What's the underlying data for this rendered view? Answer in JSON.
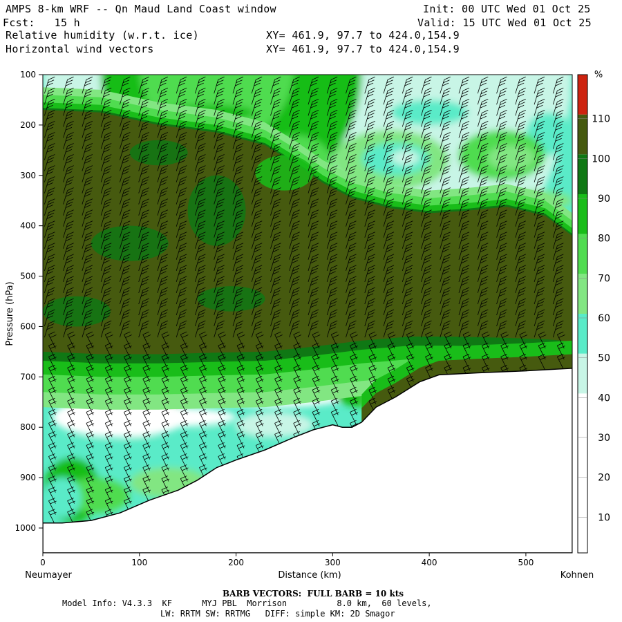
{
  "header": {
    "title": "AMPS 8-km WRF -- Qn Maud Land Coast window",
    "init": "Init: 00 UTC Wed 01 Oct 25",
    "fcst": "Fcst:   15 h",
    "valid": "Valid: 15 UTC Wed 01 Oct 25",
    "field1": "Relative humidity (w.r.t. ice)",
    "field2": "Horizontal wind vectors",
    "xy1": "XY= 461.9, 97.7 to 424.0,154.9",
    "xy2": "XY= 461.9, 97.7 to 424.0,154.9"
  },
  "footer": {
    "barb": "BARB VECTORS:  FULL BARB = 10 kts",
    "model1": "Model Info: V4.3.3  KF      MYJ PBL  Morrison          8.0 km,  60 levels,",
    "model2": "LW: RRTM SW: RRTMG   DIFF: simple KM: 2D Smagor"
  },
  "chart_data": {
    "type": "heatmap",
    "title": "Relative humidity (w.r.t. ice) cross-section",
    "xlabel": "Distance (km)",
    "ylabel": "Pressure (hPa)",
    "x_start_label": "Neumayer",
    "x_end_label": "Kohnen",
    "xlim": [
      0,
      548
    ],
    "ylim": [
      1050,
      100
    ],
    "xticks": [
      0,
      100,
      200,
      300,
      400,
      500
    ],
    "yticks": [
      100,
      200,
      300,
      400,
      500,
      600,
      700,
      800,
      900,
      1000
    ],
    "colorbar": {
      "unit": "%",
      "levels": [
        10,
        20,
        30,
        40,
        50,
        60,
        70,
        80,
        90,
        100,
        110
      ],
      "colors": [
        "#ffffff",
        "#ffffff",
        "#ffffff",
        "#c8f5e6",
        "#5aebc8",
        "#82e682",
        "#50dc50",
        "#19bd19",
        "#0f7814",
        "#465a0f",
        "#cd230f"
      ]
    },
    "terrain": [
      [
        0,
        990
      ],
      [
        20,
        990
      ],
      [
        50,
        985
      ],
      [
        80,
        970
      ],
      [
        110,
        945
      ],
      [
        140,
        925
      ],
      [
        160,
        905
      ],
      [
        180,
        880
      ],
      [
        200,
        865
      ],
      [
        230,
        845
      ],
      [
        260,
        820
      ],
      [
        280,
        805
      ],
      [
        300,
        795
      ],
      [
        310,
        800
      ],
      [
        320,
        800
      ],
      [
        330,
        790
      ],
      [
        345,
        760
      ],
      [
        365,
        740
      ],
      [
        390,
        710
      ],
      [
        410,
        696
      ],
      [
        450,
        692
      ],
      [
        500,
        688
      ],
      [
        548,
        683
      ]
    ],
    "moist_layer": {
      "top": [
        [
          0,
          170
        ],
        [
          60,
          175
        ],
        [
          120,
          200
        ],
        [
          180,
          215
        ],
        [
          230,
          240
        ],
        [
          260,
          275
        ],
        [
          290,
          315
        ],
        [
          320,
          345
        ],
        [
          360,
          365
        ],
        [
          400,
          375
        ],
        [
          440,
          370
        ],
        [
          480,
          362
        ],
        [
          520,
          380
        ],
        [
          548,
          420
        ]
      ],
      "bottom": [
        [
          0,
          650
        ],
        [
          60,
          655
        ],
        [
          120,
          655
        ],
        [
          180,
          652
        ],
        [
          230,
          650
        ],
        [
          280,
          640
        ],
        [
          330,
          628
        ],
        [
          380,
          620
        ],
        [
          420,
          620
        ],
        [
          470,
          622
        ],
        [
          520,
          625
        ],
        [
          548,
          630
        ]
      ]
    },
    "wind_barbs": "full barb = 10 kts"
  }
}
